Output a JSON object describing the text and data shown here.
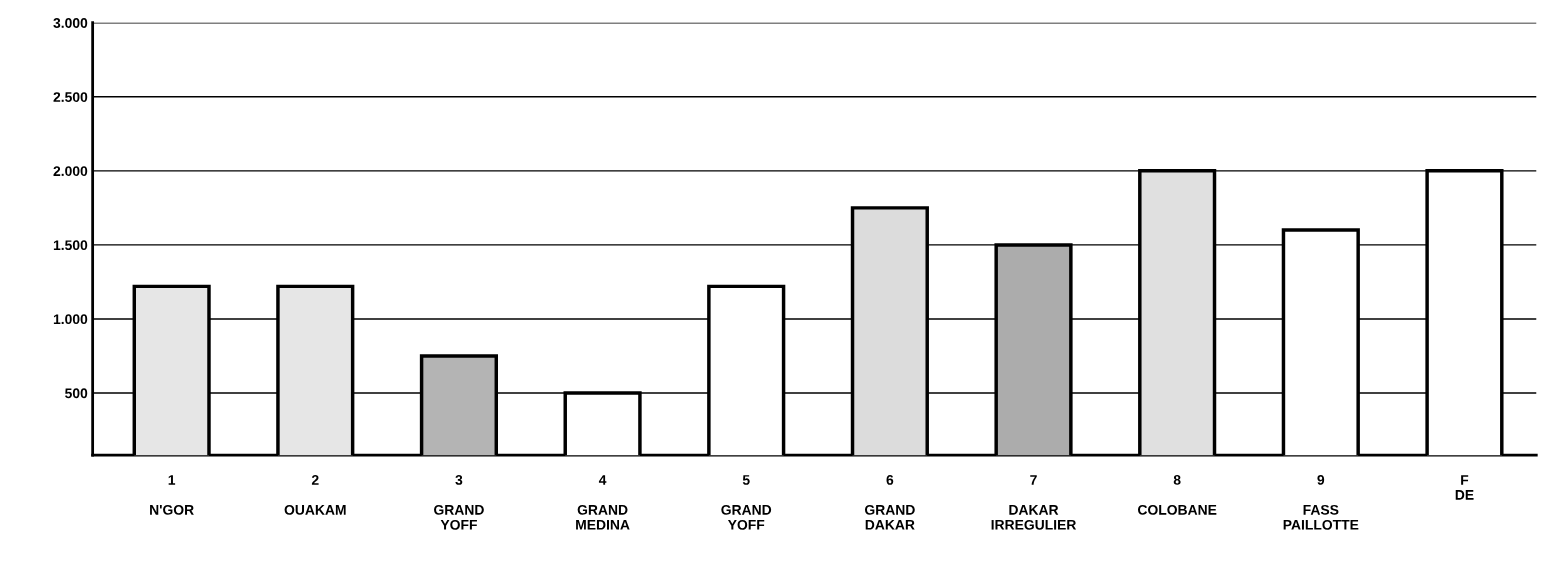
{
  "chart_data": {
    "type": "bar",
    "categories": [
      "1\n\nN'GOR",
      "2\n\nOUAKAM",
      "3\n\nGRAND\nYOFF",
      "4\n\nGRAND\nMEDINA",
      "5\n\nGRAND\nYOFF",
      "6\n\nGRAND\nDAKAR",
      "7\n\nDAKAR\nIRREGULIER",
      "8\n\nCOLOBANE",
      "9\n\nFASS\nPAILLOTTE",
      "F\nDE"
    ],
    "values": [
      1220,
      1220,
      750,
      500,
      1220,
      1750,
      1500,
      2000,
      1600,
      2000
    ],
    "colors": [
      "#e6e6e6",
      "#e6e6e6",
      "#b4b4b4",
      "#ffffff",
      "#ffffff",
      "#dcdcdc",
      "#acacac",
      "#e0e0e0",
      "#ffffff",
      "#ffffff"
    ],
    "ylim": [
      80,
      3000
    ],
    "yticks": [
      {
        "value": 500,
        "label": "500"
      },
      {
        "value": 1000,
        "label": "1.000"
      },
      {
        "value": 1500,
        "label": "1.500"
      },
      {
        "value": 2000,
        "label": "2.000"
      },
      {
        "value": 2500,
        "label": "2.500"
      },
      {
        "value": 3000,
        "label": "3.000"
      }
    ],
    "grid": "y"
  }
}
